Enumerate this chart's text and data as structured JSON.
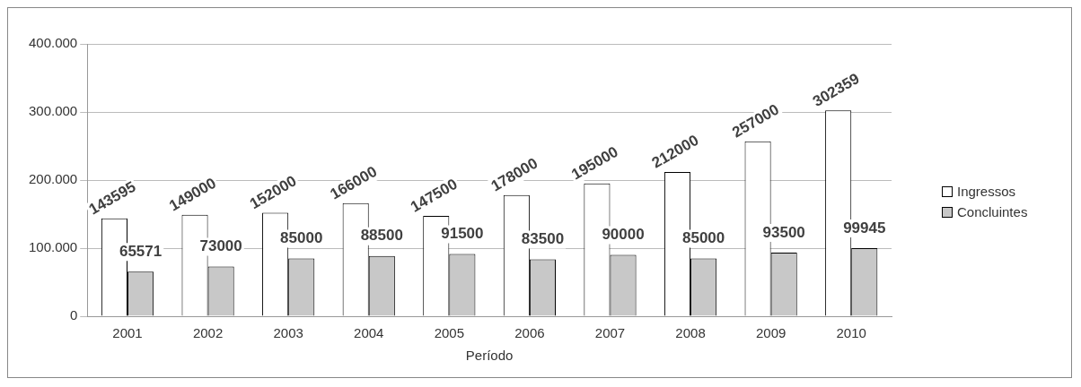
{
  "chart_data": {
    "type": "bar",
    "xlabel": "Período",
    "categories": [
      "2001",
      "2002",
      "2003",
      "2004",
      "2005",
      "2006",
      "2007",
      "2008",
      "2009",
      "2010"
    ],
    "series": [
      {
        "name": "Ingressos",
        "color": "#ffffff",
        "values": [
          143595,
          149000,
          152000,
          166000,
          147500,
          178000,
          195000,
          212000,
          257000,
          302359
        ]
      },
      {
        "name": "Concluintes",
        "color": "#c8c8c8",
        "values": [
          65571,
          73000,
          85000,
          88500,
          91500,
          83500,
          90000,
          85000,
          93500,
          99945
        ]
      }
    ],
    "ylim": [
      0,
      400000
    ],
    "yticks": [
      {
        "value": 0,
        "label": "0"
      },
      {
        "value": 100000,
        "label": "100.000"
      },
      {
        "value": 200000,
        "label": "200.000"
      },
      {
        "value": 300000,
        "label": "300.000"
      },
      {
        "value": 400000,
        "label": "400.000"
      }
    ],
    "grid": "y",
    "legend": "right",
    "data_labels": true
  }
}
